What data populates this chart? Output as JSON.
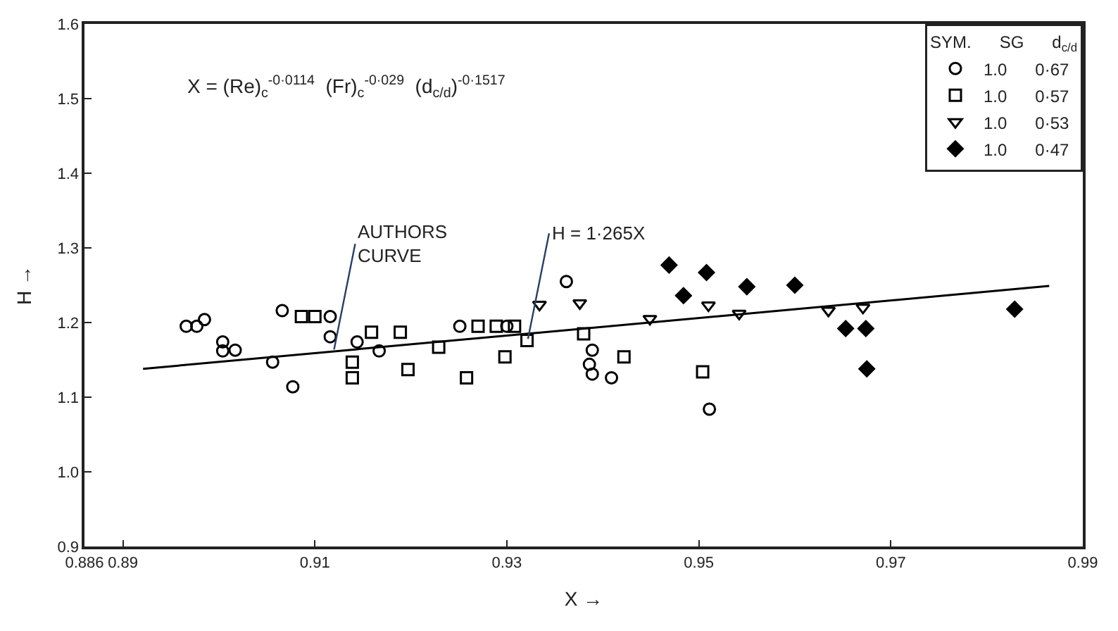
{
  "chart_data": {
    "type": "scatter",
    "xlabel": "X →",
    "ylabel": "H →",
    "legend_title": "SYM.      SG      d$_{c/d}$",
    "annotations": [
      "X = (Re)$_{c}$$^{-0·0114}$  (Fr)$_{c}$$^{-0·029}$  (d$_{c/d}$)$^{-0·1517}$",
      {
        "text": "AUTHORS\nCURVE",
        "x": 0.912,
        "y": 1.164
      },
      {
        "text": "H = 1·265X",
        "x": 0.9322,
        "y": 1.178
      }
    ],
    "xlim": [
      0.886,
      0.99
    ],
    "ylim": [
      0.9,
      1.6
    ],
    "xticks": [
      {
        "value": 0.886,
        "label": "0.886"
      },
      {
        "value": 0.89,
        "label": "0.89"
      },
      {
        "value": 0.91,
        "label": "0.91"
      },
      {
        "value": 0.93,
        "label": "0.93"
      },
      {
        "value": 0.95,
        "label": "0.95"
      },
      {
        "value": 0.97,
        "label": "0.97"
      },
      {
        "value": 0.99,
        "label": "0.99"
      }
    ],
    "yticks": [
      {
        "value": 0.9,
        "label": "0.9"
      },
      {
        "value": 1.0,
        "label": "1.0"
      },
      {
        "value": 1.1,
        "label": "1.1"
      },
      {
        "value": 1.2,
        "label": "1.2"
      },
      {
        "value": 1.3,
        "label": "1.3"
      },
      {
        "value": 1.4,
        "label": "1.4"
      },
      {
        "value": 1.5,
        "label": "1.5"
      },
      {
        "value": 1.6,
        "label": "1.6"
      }
    ],
    "legend": "top right",
    "series": [
      {
        "name": "1.0      0·67",
        "color": "#000000",
        "marker": "circle",
        "x": [
          0.8966,
          0.8977,
          0.8985,
          0.9004,
          0.9004,
          0.9017,
          0.9066,
          0.9056,
          0.9077,
          0.9116,
          0.9116,
          0.9144,
          0.9167,
          0.9251,
          0.93,
          0.9362,
          0.9389,
          0.9386,
          0.9389,
          0.9409,
          0.9511
        ],
        "values": [
          1.195,
          1.195,
          1.204,
          1.174,
          1.162,
          1.163,
          1.216,
          1.147,
          1.114,
          1.208,
          1.181,
          1.174,
          1.162,
          1.195,
          1.195,
          1.255,
          1.163,
          1.144,
          1.131,
          1.126,
          1.084
        ]
      },
      {
        "name": "1.0      0·57",
        "color": "#000000",
        "marker": "square",
        "x": [
          0.9086,
          0.91,
          0.9159,
          0.9189,
          0.9139,
          0.9139,
          0.9197,
          0.927,
          0.9289,
          0.9308,
          0.9229,
          0.9258,
          0.9298,
          0.9321,
          0.938,
          0.9422,
          0.9504
        ],
        "values": [
          1.208,
          1.208,
          1.187,
          1.187,
          1.147,
          1.126,
          1.137,
          1.195,
          1.195,
          1.195,
          1.167,
          1.126,
          1.154,
          1.176,
          1.185,
          1.154,
          1.134
        ]
      },
      {
        "name": "1.0      0·53",
        "color": "#000000",
        "marker": "triangle",
        "x": [
          0.9334,
          0.9376,
          0.9449,
          0.951,
          0.9542,
          0.9635,
          0.9671
        ],
        "values": [
          1.224,
          1.226,
          1.205,
          1.223,
          1.212,
          1.216,
          1.22
        ]
      },
      {
        "name": "1.0      0·47",
        "color": "#000000",
        "marker": "diamond",
        "x": [
          0.9469,
          0.9484,
          0.9508,
          0.955,
          0.96,
          0.9653,
          0.9674,
          0.9675,
          0.9829
        ],
        "values": [
          1.277,
          1.236,
          1.267,
          1.248,
          1.25,
          1.192,
          1.192,
          1.138,
          1.218
        ]
      },
      {
        "type": "line",
        "color": "#000000",
        "line_style": "solid",
        "marker": "none",
        "x": [
          0.8921,
          0.9865
        ],
        "values": [
          1.138,
          1.249
        ]
      }
    ]
  }
}
